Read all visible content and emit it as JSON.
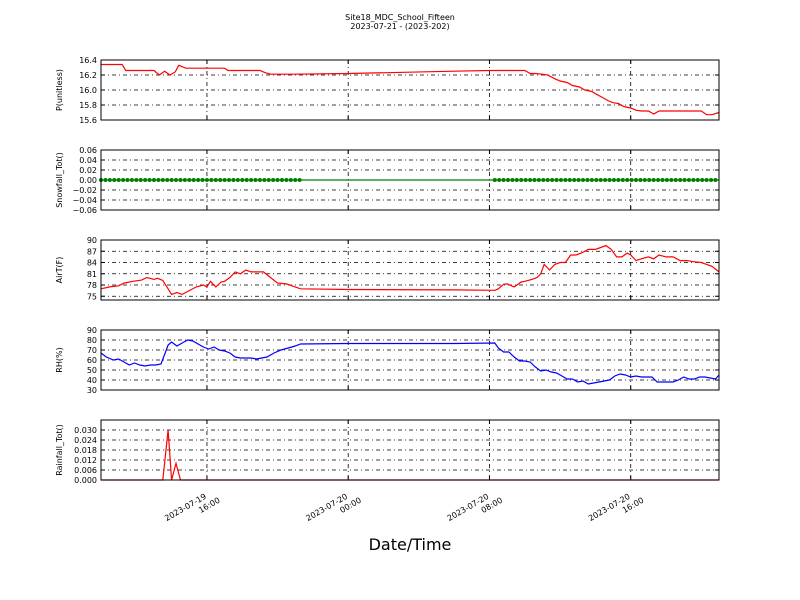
{
  "figure": {
    "title": "Site18_MDC_School_Fifteen",
    "subtitle": "2023-07-21 - (2023-202)",
    "xlabel": "Date/Time",
    "x_ticks": [
      {
        "t": 6.0,
        "label": [
          "2023-07-19",
          "16:00"
        ]
      },
      {
        "t": 14.0,
        "label": [
          "2023-07-20",
          "00:00"
        ]
      },
      {
        "t": 22.0,
        "label": [
          "2023-07-20",
          "08:00"
        ]
      },
      {
        "t": 30.0,
        "label": [
          "2023-07-20",
          "16:00"
        ]
      }
    ]
  },
  "chart_data": [
    {
      "type": "line",
      "ylabel": "P(unitless)",
      "ylim": [
        15.6,
        16.4
      ],
      "yticks": [
        {
          "v": 15.6,
          "label": "15.6"
        },
        {
          "v": 15.8,
          "label": "15.8"
        },
        {
          "v": 16.0,
          "label": "16.0"
        },
        {
          "v": 16.2,
          "label": "16.2"
        },
        {
          "v": 16.4,
          "label": "16.4"
        }
      ],
      "grid": true,
      "series": [
        {
          "color": "#ff0000",
          "marker": false,
          "x": [
            0,
            1.2,
            1.4,
            3.0,
            3.3,
            3.6,
            3.9,
            4.2,
            4.4,
            4.8,
            5.0,
            5.2,
            7.0,
            7.2,
            9.0,
            9.3,
            9.6,
            11,
            14,
            20,
            22,
            24.0,
            24.3,
            24.6,
            25.0,
            25.3,
            25.7,
            26.0,
            26.4,
            26.7,
            27.1,
            27.4,
            27.8,
            28.0,
            28.4,
            28.7,
            29.0,
            29.3,
            29.6,
            30.0,
            30.3,
            30.6,
            31.0,
            31.3,
            31.6,
            31.8,
            32.0,
            33.0,
            33.3,
            34.0,
            34.3,
            34.6,
            35.0
          ],
          "y": [
            16.34,
            16.34,
            16.26,
            16.26,
            16.2,
            16.25,
            16.2,
            16.24,
            16.33,
            16.29,
            16.29,
            16.29,
            16.29,
            16.26,
            16.26,
            16.23,
            16.21,
            16.21,
            16.22,
            16.25,
            16.26,
            16.26,
            16.22,
            16.22,
            16.21,
            16.2,
            16.15,
            16.12,
            16.1,
            16.06,
            16.04,
            16.0,
            15.98,
            15.95,
            15.9,
            15.86,
            15.83,
            15.82,
            15.78,
            15.76,
            15.73,
            15.72,
            15.72,
            15.68,
            15.72,
            15.72,
            15.72,
            15.72,
            15.72,
            15.72,
            15.67,
            15.67,
            15.7
          ]
        }
      ]
    },
    {
      "type": "line",
      "ylabel": "Snowfall_Tot()",
      "ylim": [
        -0.06,
        0.06
      ],
      "yticks": [
        {
          "v": -0.06,
          "label": "−0.06"
        },
        {
          "v": -0.04,
          "label": "−0.04"
        },
        {
          "v": -0.02,
          "label": "−0.02"
        },
        {
          "v": 0,
          "label": "0.00"
        },
        {
          "v": 0.02,
          "label": "0.02"
        },
        {
          "v": 0.04,
          "label": "0.04"
        },
        {
          "v": 0.06,
          "label": "0.06"
        }
      ],
      "grid": true,
      "series": [
        {
          "color": "#008000",
          "marker": true,
          "marker_ranges": [
            [
              0,
              11.3
            ],
            [
              22.3,
              35
            ]
          ],
          "x": [
            0,
            35
          ],
          "y": [
            0,
            0
          ]
        }
      ]
    },
    {
      "type": "line",
      "ylabel": "AirT(F)",
      "ylim": [
        74,
        90
      ],
      "yticks": [
        {
          "v": 75,
          "label": "75"
        },
        {
          "v": 78,
          "label": "78"
        },
        {
          "v": 81,
          "label": "81"
        },
        {
          "v": 84,
          "label": "84"
        },
        {
          "v": 87,
          "label": "87"
        },
        {
          "v": 90,
          "label": "90"
        }
      ],
      "grid": true,
      "series": [
        {
          "color": "#ff0000",
          "marker": false,
          "x": [
            0,
            0.5,
            1.0,
            1.3,
            1.8,
            2.3,
            2.6,
            3.0,
            3.2,
            3.5,
            3.8,
            4.0,
            4.3,
            4.6,
            5.0,
            5.4,
            5.8,
            6.0,
            6.2,
            6.5,
            6.8,
            7.0,
            7.3,
            7.6,
            7.9,
            8.2,
            8.5,
            8.8,
            9.2,
            9.6,
            10.0,
            10.5,
            11.3,
            14,
            20,
            22.3,
            22.5,
            22.8,
            23.0,
            23.4,
            23.8,
            24.0,
            24.4,
            24.7,
            24.9,
            25.1,
            25.4,
            25.7,
            26.0,
            26.3,
            26.6,
            26.9,
            27.2,
            27.6,
            28.0,
            28.3,
            28.6,
            28.9,
            29.2,
            29.5,
            29.8,
            30.0,
            30.3,
            30.6,
            31.0,
            31.3,
            31.6,
            32.0,
            32.4,
            32.8,
            33.2,
            33.6,
            34.0,
            34.3,
            34.6,
            35.0
          ],
          "y": [
            77,
            77.5,
            77.8,
            78.5,
            79,
            79.3,
            80,
            79.5,
            79.8,
            79.2,
            77,
            75.5,
            76,
            75.5,
            76.5,
            77.5,
            78,
            77.5,
            79,
            77.5,
            78.8,
            79,
            80,
            81.5,
            81,
            82,
            81.5,
            81.5,
            81.5,
            80,
            78.5,
            78.3,
            77,
            76.8,
            76.7,
            76.6,
            77,
            78.2,
            78.3,
            77.5,
            78.8,
            79,
            79.5,
            80,
            81,
            83.5,
            82,
            83.5,
            84,
            84,
            86,
            86,
            86.5,
            87.5,
            87.5,
            88,
            88.5,
            87.5,
            85.5,
            85.5,
            86.5,
            86,
            84.5,
            85,
            85.5,
            85,
            86,
            85.5,
            85.5,
            84.5,
            84.5,
            84.2,
            84,
            83.5,
            83,
            81.5
          ]
        }
      ]
    },
    {
      "type": "line",
      "ylabel": "RH(%)",
      "ylim": [
        30,
        90
      ],
      "yticks": [
        {
          "v": 30,
          "label": "30"
        },
        {
          "v": 40,
          "label": "40"
        },
        {
          "v": 50,
          "label": "50"
        },
        {
          "v": 60,
          "label": "60"
        },
        {
          "v": 70,
          "label": "70"
        },
        {
          "v": 80,
          "label": "80"
        },
        {
          "v": 90,
          "label": "90"
        }
      ],
      "grid": true,
      "series": [
        {
          "color": "#0000ff",
          "marker": false,
          "x": [
            0,
            0.3,
            0.7,
            1.0,
            1.3,
            1.6,
            1.9,
            2.2,
            2.5,
            2.8,
            3.1,
            3.4,
            3.7,
            3.8,
            4.0,
            4.3,
            4.6,
            4.9,
            5.2,
            5.5,
            5.8,
            6.1,
            6.4,
            6.7,
            7.0,
            7.3,
            7.6,
            7.9,
            8.2,
            8.5,
            8.8,
            9.1,
            9.4,
            9.8,
            10.2,
            10.6,
            11.0,
            11.3,
            14,
            20,
            22.3,
            22.5,
            22.8,
            23.1,
            23.4,
            23.7,
            24.0,
            24.3,
            24.6,
            24.9,
            25.2,
            25.5,
            25.8,
            26.1,
            26.4,
            26.7,
            27.0,
            27.3,
            27.6,
            27.9,
            28.2,
            28.5,
            28.8,
            29.1,
            29.4,
            29.7,
            30.0,
            30.3,
            30.6,
            30.9,
            31.2,
            31.5,
            31.8,
            32.1,
            32.4,
            32.7,
            33.0,
            33.3,
            33.6,
            33.9,
            34.2,
            34.5,
            34.8,
            35.0
          ],
          "y": [
            67,
            63,
            60,
            61,
            58,
            55,
            57,
            55,
            54,
            55,
            55,
            56,
            70,
            75,
            78,
            74,
            77,
            80,
            79,
            76,
            73,
            71,
            73,
            70,
            69,
            67,
            63,
            62,
            62,
            62,
            61,
            62,
            63,
            67,
            70,
            72,
            74,
            76,
            76.5,
            76.5,
            77,
            72,
            68,
            68,
            63,
            59,
            59,
            58,
            53,
            49,
            50,
            48,
            47,
            44,
            41,
            41,
            38,
            39,
            36,
            37,
            38,
            39,
            40,
            44,
            46,
            45,
            43,
            44,
            43,
            43,
            43,
            38,
            38,
            38,
            38,
            40,
            43,
            41,
            41,
            43,
            43,
            42,
            41,
            45
          ]
        }
      ]
    },
    {
      "type": "line",
      "ylabel": "Rainfall_Tot()",
      "ylim": [
        0,
        0.036
      ],
      "yticks": [
        {
          "v": 0,
          "label": "0.000"
        },
        {
          "v": 0.006,
          "label": "0.006"
        },
        {
          "v": 0.012,
          "label": "0.012"
        },
        {
          "v": 0.018,
          "label": "0.018"
        },
        {
          "v": 0.024,
          "label": "0.024"
        },
        {
          "v": 0.03,
          "label": "0.030"
        }
      ],
      "grid": true,
      "series": [
        {
          "color": "#ff0000",
          "marker": false,
          "x": [
            0,
            3.5,
            3.8,
            4.0,
            4.25,
            4.5,
            4.7,
            5.0,
            35
          ],
          "y": [
            0,
            0,
            0.03,
            0,
            0.01,
            0,
            0,
            0,
            0
          ]
        }
      ]
    }
  ]
}
